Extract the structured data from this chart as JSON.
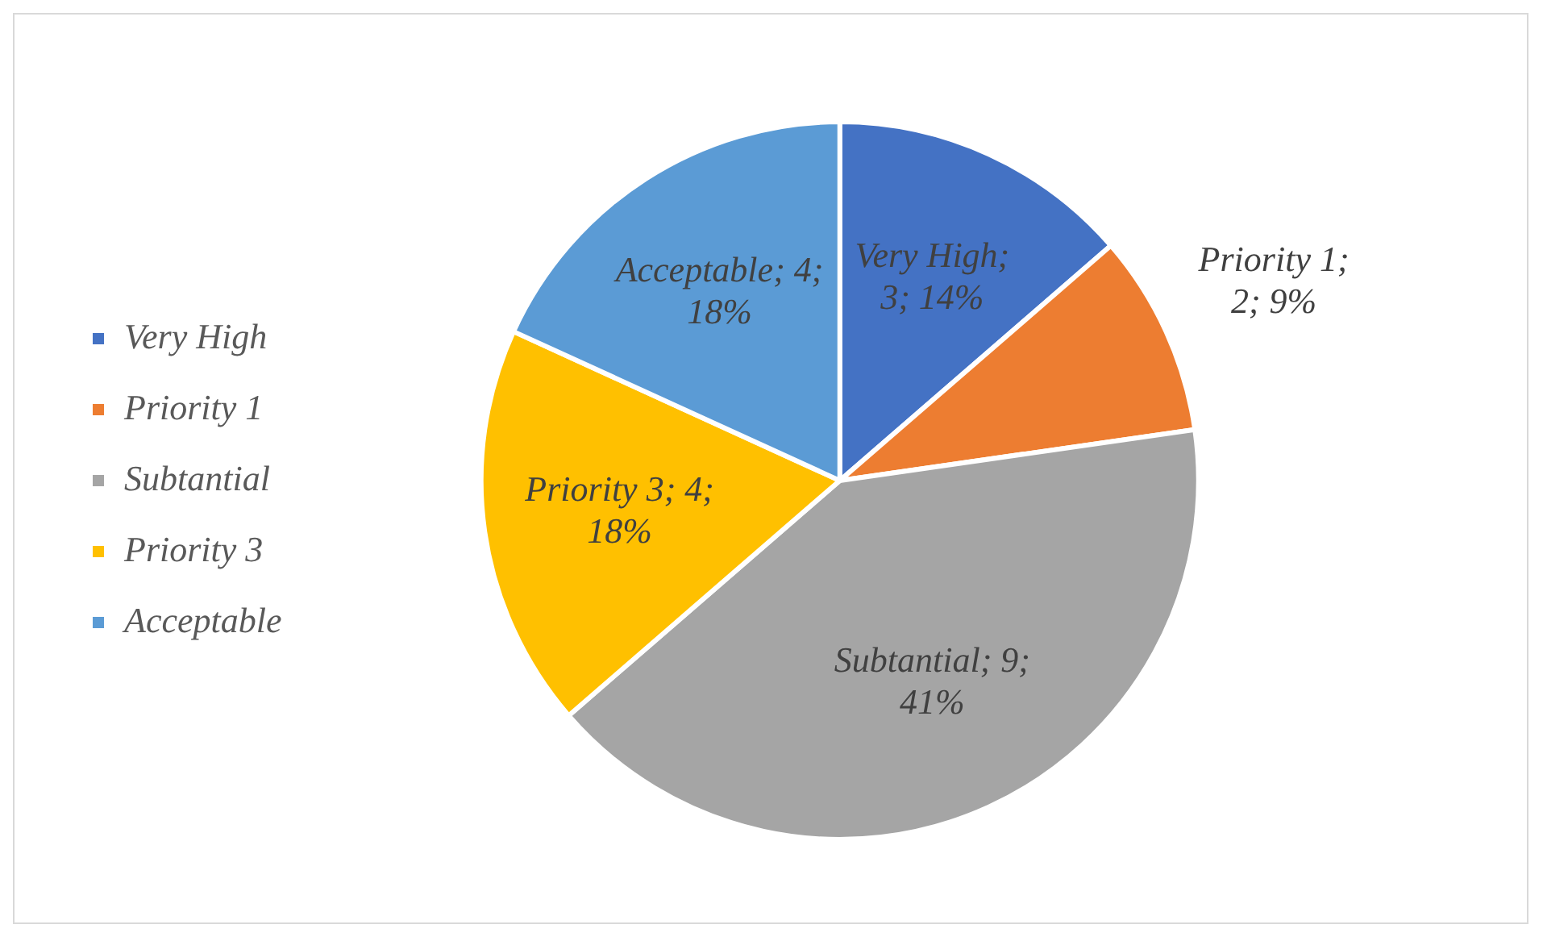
{
  "chart_data": {
    "type": "pie",
    "categories": [
      "Very High",
      "Priority 1",
      "Subtantial",
      "Priority 3",
      "Acceptable"
    ],
    "values": [
      3,
      2,
      9,
      4,
      4
    ],
    "colors": [
      "#4472c4",
      "#ed7d31",
      "#a5a5a5",
      "#ffc000",
      "#5b9bd5"
    ],
    "value_labels": [
      "Very High; 3; 14%",
      "Priority 1; 2; 9%",
      "Subtantial; 9; 41%",
      "Priority 3; 4; 18%",
      "Acceptable; 4; 18%"
    ],
    "legend": "left"
  }
}
